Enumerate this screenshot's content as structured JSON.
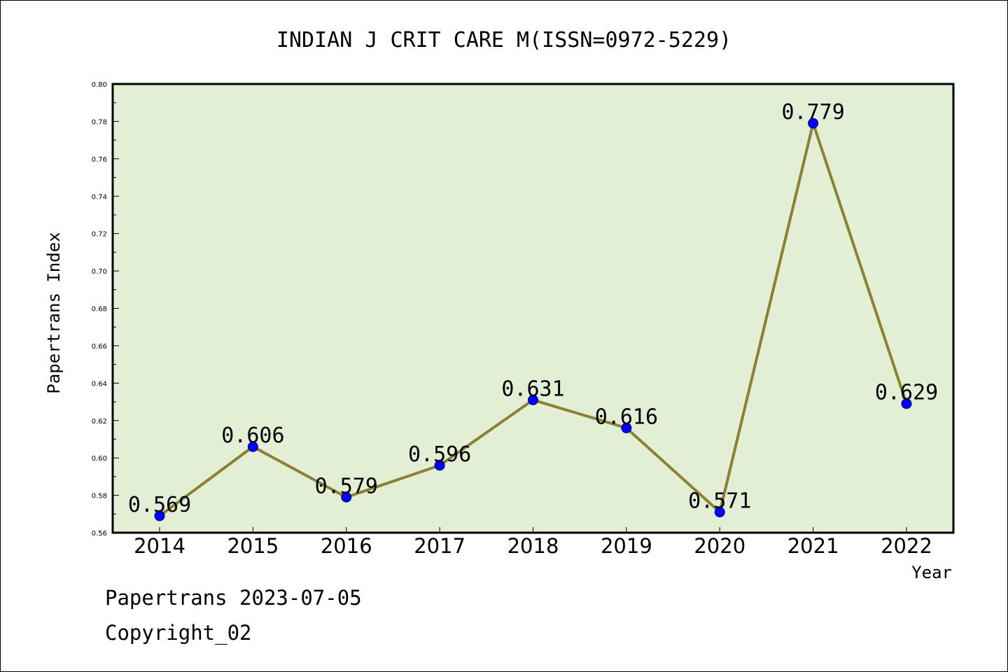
{
  "chart_data": {
    "type": "line",
    "title": "INDIAN J CRIT CARE M(ISSN=0972-5229)",
    "xlabel": "Year",
    "ylabel": "Papertrans Index",
    "categories": [
      "2014",
      "2015",
      "2016",
      "2017",
      "2018",
      "2019",
      "2020",
      "2021",
      "2022"
    ],
    "series": [
      {
        "values": [
          0.569,
          0.606,
          0.579,
          0.596,
          0.631,
          0.616,
          0.571,
          0.779,
          0.629
        ],
        "data_labels": [
          "0.569",
          "0.606",
          "0.579",
          "0.596",
          "0.631",
          "0.616",
          "0.571",
          "0.779",
          "0.629"
        ]
      }
    ],
    "ylim": [
      0.56,
      0.8
    ],
    "yticks": [
      "0.56",
      "0.58",
      "0.60",
      "0.62",
      "0.64",
      "0.66",
      "0.68",
      "0.70",
      "0.72",
      "0.74",
      "0.76",
      "0.78",
      "0.80"
    ],
    "grid": false,
    "legend": "none",
    "colors": {
      "plot_background": "#e2efd5",
      "line": "#8b8033",
      "marker_fill": "#0000ff",
      "marker_edge": "#00008b",
      "frame": "#000000"
    }
  },
  "footer": {
    "date_line": "Papertrans 2023-07-05",
    "copyright_line": "Copyright_02"
  }
}
